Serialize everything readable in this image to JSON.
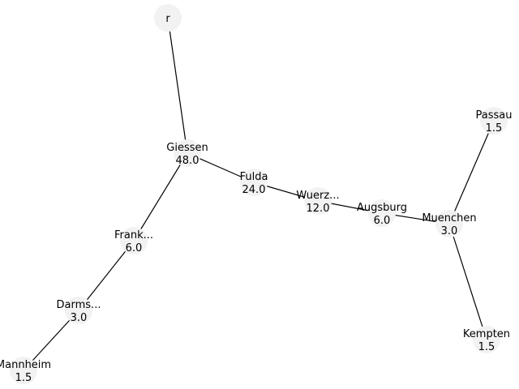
{
  "graph": {
    "nodes": [
      {
        "id": "r",
        "name": "r",
        "value": ""
      },
      {
        "id": "giessen",
        "name": "Giessen",
        "value": "48.0"
      },
      {
        "id": "fulda",
        "name": "Fulda",
        "value": "24.0"
      },
      {
        "id": "wuerzburg",
        "name": "Wuerz...",
        "value": "12.0"
      },
      {
        "id": "augsburg",
        "name": "Augsburg",
        "value": "6.0"
      },
      {
        "id": "muenchen",
        "name": "Muenchen",
        "value": "3.0"
      },
      {
        "id": "passau",
        "name": "Passau",
        "value": "1.5"
      },
      {
        "id": "kempten",
        "name": "Kempten",
        "value": "1.5"
      },
      {
        "id": "frankfurt",
        "name": "Frank...",
        "value": "6.0"
      },
      {
        "id": "darmstadt",
        "name": "Darms...",
        "value": "3.0"
      },
      {
        "id": "mannheim",
        "name": "Mannheim",
        "value": "1.5"
      }
    ],
    "edges": [
      [
        "r",
        "giessen"
      ],
      [
        "giessen",
        "fulda"
      ],
      [
        "fulda",
        "wuerzburg"
      ],
      [
        "wuerzburg",
        "augsburg"
      ],
      [
        "augsburg",
        "muenchen"
      ],
      [
        "muenchen",
        "passau"
      ],
      [
        "muenchen",
        "kempten"
      ],
      [
        "giessen",
        "frankfurt"
      ],
      [
        "frankfurt",
        "darmstadt"
      ],
      [
        "darmstadt",
        "mannheim"
      ]
    ]
  }
}
